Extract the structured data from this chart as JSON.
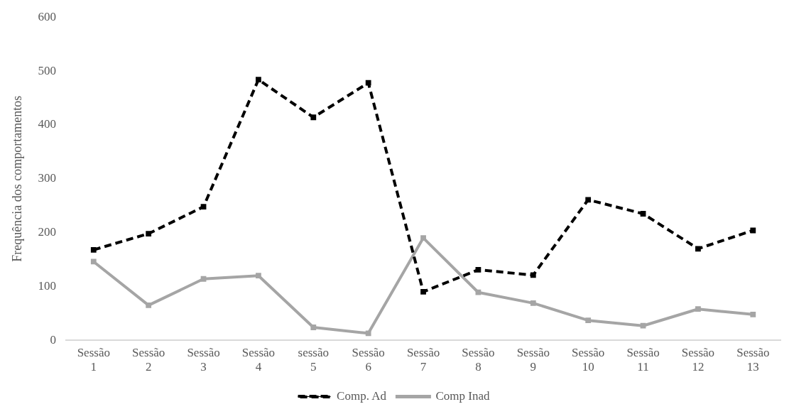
{
  "chart_data": {
    "type": "line",
    "ylabel": "Frequência dos comportamentos",
    "categories": [
      "Sessão 1",
      "Sessão 2",
      "Sessão 3",
      "Sessão 4",
      "sessão 5",
      "Sessão 6",
      "Sessão 7",
      "Sessão 8",
      "Sessão 9",
      "Sessão 10",
      "Sessão 11",
      "Sessão 12",
      "Sessão 13"
    ],
    "series": [
      {
        "name": "Comp. Ad",
        "color": "#000000",
        "marker": "square",
        "line_style": "dashed",
        "values": [
          168,
          198,
          248,
          484,
          414,
          478,
          90,
          131,
          121,
          261,
          235,
          170,
          204
        ]
      },
      {
        "name": "Comp Inad",
        "color": "#a5a5a5",
        "marker": "square",
        "line_style": "solid",
        "values": [
          146,
          65,
          114,
          120,
          24,
          13,
          190,
          89,
          69,
          37,
          27,
          58,
          48
        ]
      }
    ],
    "ylim": [
      0,
      600
    ],
    "yticks": [
      0,
      100,
      200,
      300,
      400,
      500,
      600
    ],
    "grid": false,
    "legend": "bottom"
  }
}
